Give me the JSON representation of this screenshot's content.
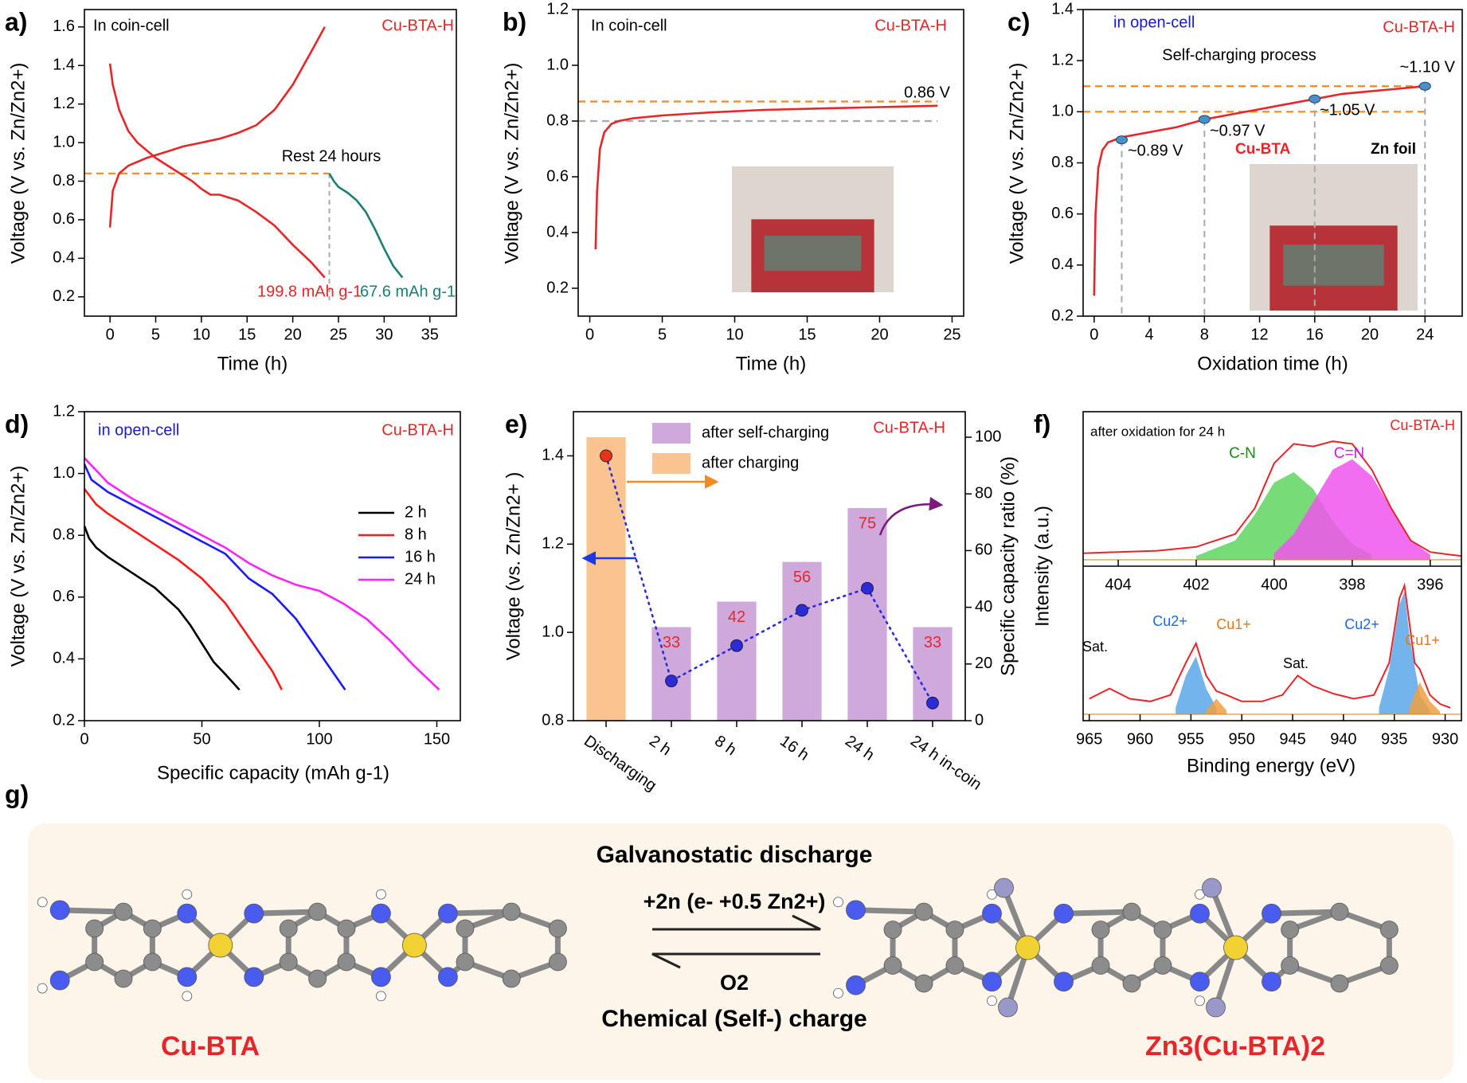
{
  "chart_data": [
    {
      "panel": "a)",
      "type": "line",
      "xlabel": "Time (h)",
      "ylabel": "Voltage (V vs. Zn/Zn2+)",
      "xlim": [
        -2.8,
        37.9
      ],
      "xticks": [
        0,
        5,
        10,
        15,
        20,
        25,
        30,
        35
      ],
      "ylim": [
        0.1,
        1.69
      ],
      "yticks": [
        0.2,
        0.4,
        0.6,
        0.8,
        {
          "value": 1,
          "label": "1.0"
        },
        1.2,
        1.4,
        1.6
      ],
      "hlines": [
        {
          "value": 0.84,
          "color": "#f28a1e"
        }
      ],
      "vlines": [
        {
          "value": 24,
          "color": "#aaaaaa"
        }
      ],
      "series": [
        {
          "color": "#e8262a",
          "x": [
            0,
            0.3,
            1,
            2,
            4,
            6,
            8,
            10,
            12,
            14,
            16,
            18,
            20,
            22,
            23.5
          ],
          "values": [
            0.56,
            0.75,
            0.84,
            0.88,
            0.92,
            0.95,
            0.98,
            1.0,
            1.02,
            1.05,
            1.09,
            1.17,
            1.3,
            1.47,
            1.6
          ]
        },
        {
          "color": "#e8262a",
          "x": [
            0,
            0.3,
            1,
            2,
            3,
            5,
            7,
            9,
            10,
            11,
            12,
            14,
            16,
            18,
            20,
            22,
            23.5
          ],
          "values": [
            1.41,
            1.3,
            1.17,
            1.06,
            1.0,
            0.92,
            0.86,
            0.8,
            0.76,
            0.73,
            0.73,
            0.7,
            0.64,
            0.57,
            0.47,
            0.38,
            0.3
          ]
        },
        {
          "color": "#1b7f73",
          "x": [
            24,
            24.5,
            25,
            26,
            27,
            28,
            29,
            30,
            31,
            32
          ],
          "values": [
            0.84,
            0.8,
            0.77,
            0.74,
            0.7,
            0.64,
            0.55,
            0.45,
            0.36,
            0.3
          ]
        }
      ],
      "annotations": [
        "In coin-cell",
        "Cu-BTA-H",
        "Rest 24 hours",
        "199.8 mAh g-1",
        "67.6 mAh g-1"
      ]
    },
    {
      "panel": "b)",
      "type": "line",
      "xlabel": "Time (h)",
      "ylabel": "Voltage (V vs. Zn/Zn2+)",
      "xlim": [
        -0.8,
        25.8
      ],
      "xticks": [
        0,
        5,
        10,
        15,
        20,
        25
      ],
      "ylim": [
        0.1,
        1.2
      ],
      "yticks": [
        0.2,
        0.4,
        0.6,
        0.8,
        {
          "value": 1,
          "label": "1.0"
        },
        1.2
      ],
      "hlines": [
        {
          "value": 0.87,
          "color": "#f28a1e"
        },
        {
          "value": 0.8,
          "color": "#aaaaaa"
        }
      ],
      "series": [
        {
          "color": "#e8262a",
          "x": [
            0.4,
            0.5,
            0.7,
            1,
            1.5,
            2,
            3,
            5,
            8,
            12,
            16,
            20,
            24
          ],
          "values": [
            0.34,
            0.55,
            0.7,
            0.76,
            0.79,
            0.8,
            0.81,
            0.82,
            0.83,
            0.84,
            0.845,
            0.85,
            0.855
          ]
        }
      ],
      "annotations": [
        "In coin-cell",
        "Cu-BTA-H",
        "0.86 V"
      ]
    },
    {
      "panel": "c)",
      "type": "line",
      "xlabel": "Oxidation time (h)",
      "ylabel": "Voltage (V vs. Zn/Zn2+)",
      "xlim": [
        -0.8,
        26.7
      ],
      "xticks": [
        0,
        4,
        8,
        12,
        16,
        20,
        24
      ],
      "ylim": [
        0.2,
        1.4
      ],
      "yticks": [
        0.2,
        0.4,
        0.6,
        0.8,
        {
          "value": 1,
          "label": "1.0"
        },
        1.2,
        1.4
      ],
      "hlines": [
        {
          "value": 1.0,
          "color": "#f28a1e"
        },
        {
          "value": 1.1,
          "color": "#f28a1e"
        }
      ],
      "series": [
        {
          "color": "#e8262a",
          "x": [
            0,
            0.1,
            0.3,
            0.6,
            1,
            2,
            4,
            6,
            8,
            10,
            12,
            14,
            16,
            18,
            20,
            22,
            24
          ],
          "values": [
            0.28,
            0.6,
            0.78,
            0.85,
            0.88,
            0.9,
            0.92,
            0.94,
            0.97,
            0.99,
            1.01,
            1.03,
            1.05,
            1.07,
            1.08,
            1.09,
            1.1
          ]
        }
      ],
      "points": {
        "color": "#4a90c8",
        "x": [
          2,
          8,
          16,
          24
        ],
        "values": [
          0.89,
          0.97,
          1.05,
          1.1
        ],
        "value_labels": [
          "~0.89 V",
          "~0.97 V",
          "~1.05 V",
          "~1.10 V"
        ]
      },
      "annotations": [
        "in open-cell",
        "Cu-BTA-H",
        "Self-charging process",
        "Cu-BTA",
        "Zn foil"
      ]
    },
    {
      "panel": "d)",
      "type": "line",
      "xlabel": "Specific capacity (mAh g-1)",
      "ylabel": "Voltage (V vs. Zn/Zn2+)",
      "xlim": [
        0,
        160
      ],
      "xticks": [
        0,
        50,
        100,
        150
      ],
      "ylim": [
        0.2,
        1.2
      ],
      "yticks": [
        0.2,
        0.4,
        0.6,
        0.8,
        {
          "value": 1,
          "label": "1.0"
        },
        1.2
      ],
      "legend": "right",
      "series": [
        {
          "name": "2 h",
          "color": "#000000",
          "x": [
            0,
            2,
            5,
            10,
            20,
            30,
            40,
            45,
            50,
            55,
            60,
            66
          ],
          "values": [
            0.83,
            0.79,
            0.76,
            0.73,
            0.68,
            0.63,
            0.56,
            0.51,
            0.45,
            0.39,
            0.35,
            0.3
          ]
        },
        {
          "name": "8 h",
          "color": "#ff1a1a",
          "x": [
            0,
            5,
            10,
            20,
            30,
            40,
            50,
            60,
            70,
            80,
            84
          ],
          "values": [
            0.95,
            0.9,
            0.87,
            0.82,
            0.77,
            0.72,
            0.66,
            0.58,
            0.47,
            0.36,
            0.3
          ]
        },
        {
          "name": "16 h",
          "color": "#1a1aff",
          "x": [
            0,
            3,
            10,
            20,
            40,
            60,
            65,
            70,
            80,
            90,
            100,
            111
          ],
          "values": [
            1.03,
            0.98,
            0.94,
            0.9,
            0.82,
            0.74,
            0.7,
            0.66,
            0.61,
            0.53,
            0.42,
            0.3
          ]
        },
        {
          "name": "24 h",
          "color": "#ff22ff",
          "x": [
            0,
            5,
            10,
            20,
            40,
            60,
            70,
            80,
            90,
            100,
            110,
            120,
            130,
            140,
            151
          ],
          "values": [
            1.05,
            1.01,
            0.97,
            0.92,
            0.84,
            0.76,
            0.71,
            0.67,
            0.64,
            0.62,
            0.58,
            0.53,
            0.46,
            0.38,
            0.3
          ]
        }
      ],
      "annotations": [
        "in open-cell",
        "Cu-BTA-H"
      ]
    },
    {
      "panel": "e)",
      "type": "bar_line",
      "ylabel": "Voltage (vs. Zn/Zn2+ )",
      "y2label": "Specific capacity ratio (%)",
      "categories": [
        "Discharging",
        "2 h",
        "8 h",
        "16 h",
        "24 h",
        "24 h in-coin"
      ],
      "ylim": [
        0.8,
        1.5
      ],
      "yticks": [
        0.8,
        {
          "value": 1,
          "label": "1.0"
        },
        1.2,
        1.4
      ],
      "y2lim": [
        0,
        109
      ],
      "y2ticks": [
        0,
        20,
        40,
        60,
        80,
        100
      ],
      "series": [
        {
          "name": "after self-charging",
          "type": "bar",
          "axis": "y2",
          "color": "#cfa9dc",
          "data_labels": true,
          "values": [
            null,
            33,
            42,
            56,
            75,
            33
          ]
        },
        {
          "name": "after charging",
          "type": "bar",
          "axis": "y2",
          "color": "#f9c490",
          "values": [
            100,
            null,
            null,
            null,
            null,
            null
          ]
        },
        {
          "type": "line",
          "color": "#2b2bd8",
          "marker_colors": [
            "#e8321a",
            "#2b2bd8",
            "#2b2bd8",
            "#2b2bd8",
            "#2b2bd8",
            "#2b2bd8"
          ],
          "values": [
            1.4,
            0.89,
            0.97,
            1.05,
            1.1,
            0.84
          ]
        }
      ],
      "annotations": [
        "Cu-BTA-H"
      ]
    },
    {
      "panel": "f)",
      "type": "xps",
      "ylabel": "Intensity (a.u.)",
      "xlabel": "Binding energy (eV)",
      "subplots": [
        {
          "xlim": [
            404.9,
            395.2
          ],
          "xticks": [
            404,
            402,
            400,
            398,
            396
          ],
          "ylim": [
            -0.05,
            1.15
          ],
          "series": [
            {
              "color": "#5fd65f",
              "fill": true,
              "x": [
                402,
                401,
                400.5,
                400,
                399.5,
                399,
                398.5,
                398,
                397.5
              ],
              "values": [
                0.03,
                0.15,
                0.35,
                0.6,
                0.68,
                0.55,
                0.3,
                0.12,
                0.04
              ]
            },
            {
              "color": "#ee55ee",
              "fill": true,
              "x": [
                400,
                399.5,
                399,
                398.5,
                398,
                397.5,
                397,
                396.5,
                396
              ],
              "values": [
                0.05,
                0.2,
                0.45,
                0.7,
                0.78,
                0.65,
                0.4,
                0.15,
                0.04
              ]
            },
            {
              "color": "#e8262a",
              "x": [
                404.9,
                404,
                403,
                402,
                401,
                400.5,
                400,
                399.5,
                399,
                398.5,
                398,
                397.5,
                397,
                396.5,
                396,
                395.5,
                395.2
              ],
              "values": [
                0.05,
                0.06,
                0.07,
                0.1,
                0.2,
                0.4,
                0.75,
                0.9,
                0.88,
                0.92,
                0.9,
                0.7,
                0.4,
                0.15,
                0.06,
                0.04,
                0.03
              ]
            }
          ]
        },
        {
          "xlim": [
            965.6,
            928.4
          ],
          "xticks": [
            965,
            960,
            955,
            950,
            945,
            940,
            935,
            930
          ],
          "ylim": [
            -0.05,
            1.15
          ],
          "series": [
            {
              "color": "#5aa7ea",
              "fill": true,
              "x": [
                956.5,
                955.5,
                954.5,
                953.5,
                952.5
              ],
              "values": [
                0.05,
                0.3,
                0.45,
                0.2,
                0.05
              ]
            },
            {
              "color": "#f0a040",
              "fill": true,
              "x": [
                953.5,
                952.5,
                951.5
              ],
              "values": [
                0.03,
                0.12,
                0.03
              ]
            },
            {
              "color": "#5aa7ea",
              "fill": true,
              "x": [
                936.5,
                935.5,
                934.5,
                934,
                933.5,
                932.5,
                931.5
              ],
              "values": [
                0.05,
                0.35,
                0.85,
                0.95,
                0.6,
                0.15,
                0.03
              ]
            },
            {
              "color": "#f0a040",
              "fill": true,
              "x": [
                933.5,
                932.5,
                931.5,
                930.5
              ],
              "values": [
                0.05,
                0.25,
                0.1,
                0.02
              ]
            },
            {
              "color": "#e8262a",
              "x": [
                965,
                963,
                961,
                959,
                957,
                955.5,
                954.5,
                953.5,
                952.5,
                951.5,
                950,
                948,
                946,
                944.5,
                943,
                941,
                939,
                937,
                935.5,
                934.5,
                934,
                933.5,
                933,
                932.5,
                931.5,
                930.5,
                929.5
              ],
              "values": [
                0.12,
                0.2,
                0.12,
                0.1,
                0.15,
                0.4,
                0.55,
                0.3,
                0.18,
                0.15,
                0.1,
                0.1,
                0.15,
                0.3,
                0.22,
                0.16,
                0.12,
                0.15,
                0.4,
                0.9,
                1.0,
                0.7,
                0.4,
                0.35,
                0.15,
                0.08,
                0.05
              ]
            }
          ]
        }
      ],
      "annotations": [
        "after oxidation for 24 h",
        "Cu-BTA-H",
        "C-N",
        "C=N",
        "Sat.",
        "Cu2+",
        "Cu1+",
        "Sat.",
        "Cu2+",
        "Cu1+"
      ]
    }
  ],
  "scheme": {
    "panel": "g)",
    "forward": "Galvanostatic discharge",
    "forward_detail": "+2n (e- +0.5 Zn2+)",
    "reverse_detail": "O2",
    "reverse": "Chemical (Self-) charge",
    "left": "Cu-BTA",
    "right": "Zn3(Cu-BTA)2"
  }
}
